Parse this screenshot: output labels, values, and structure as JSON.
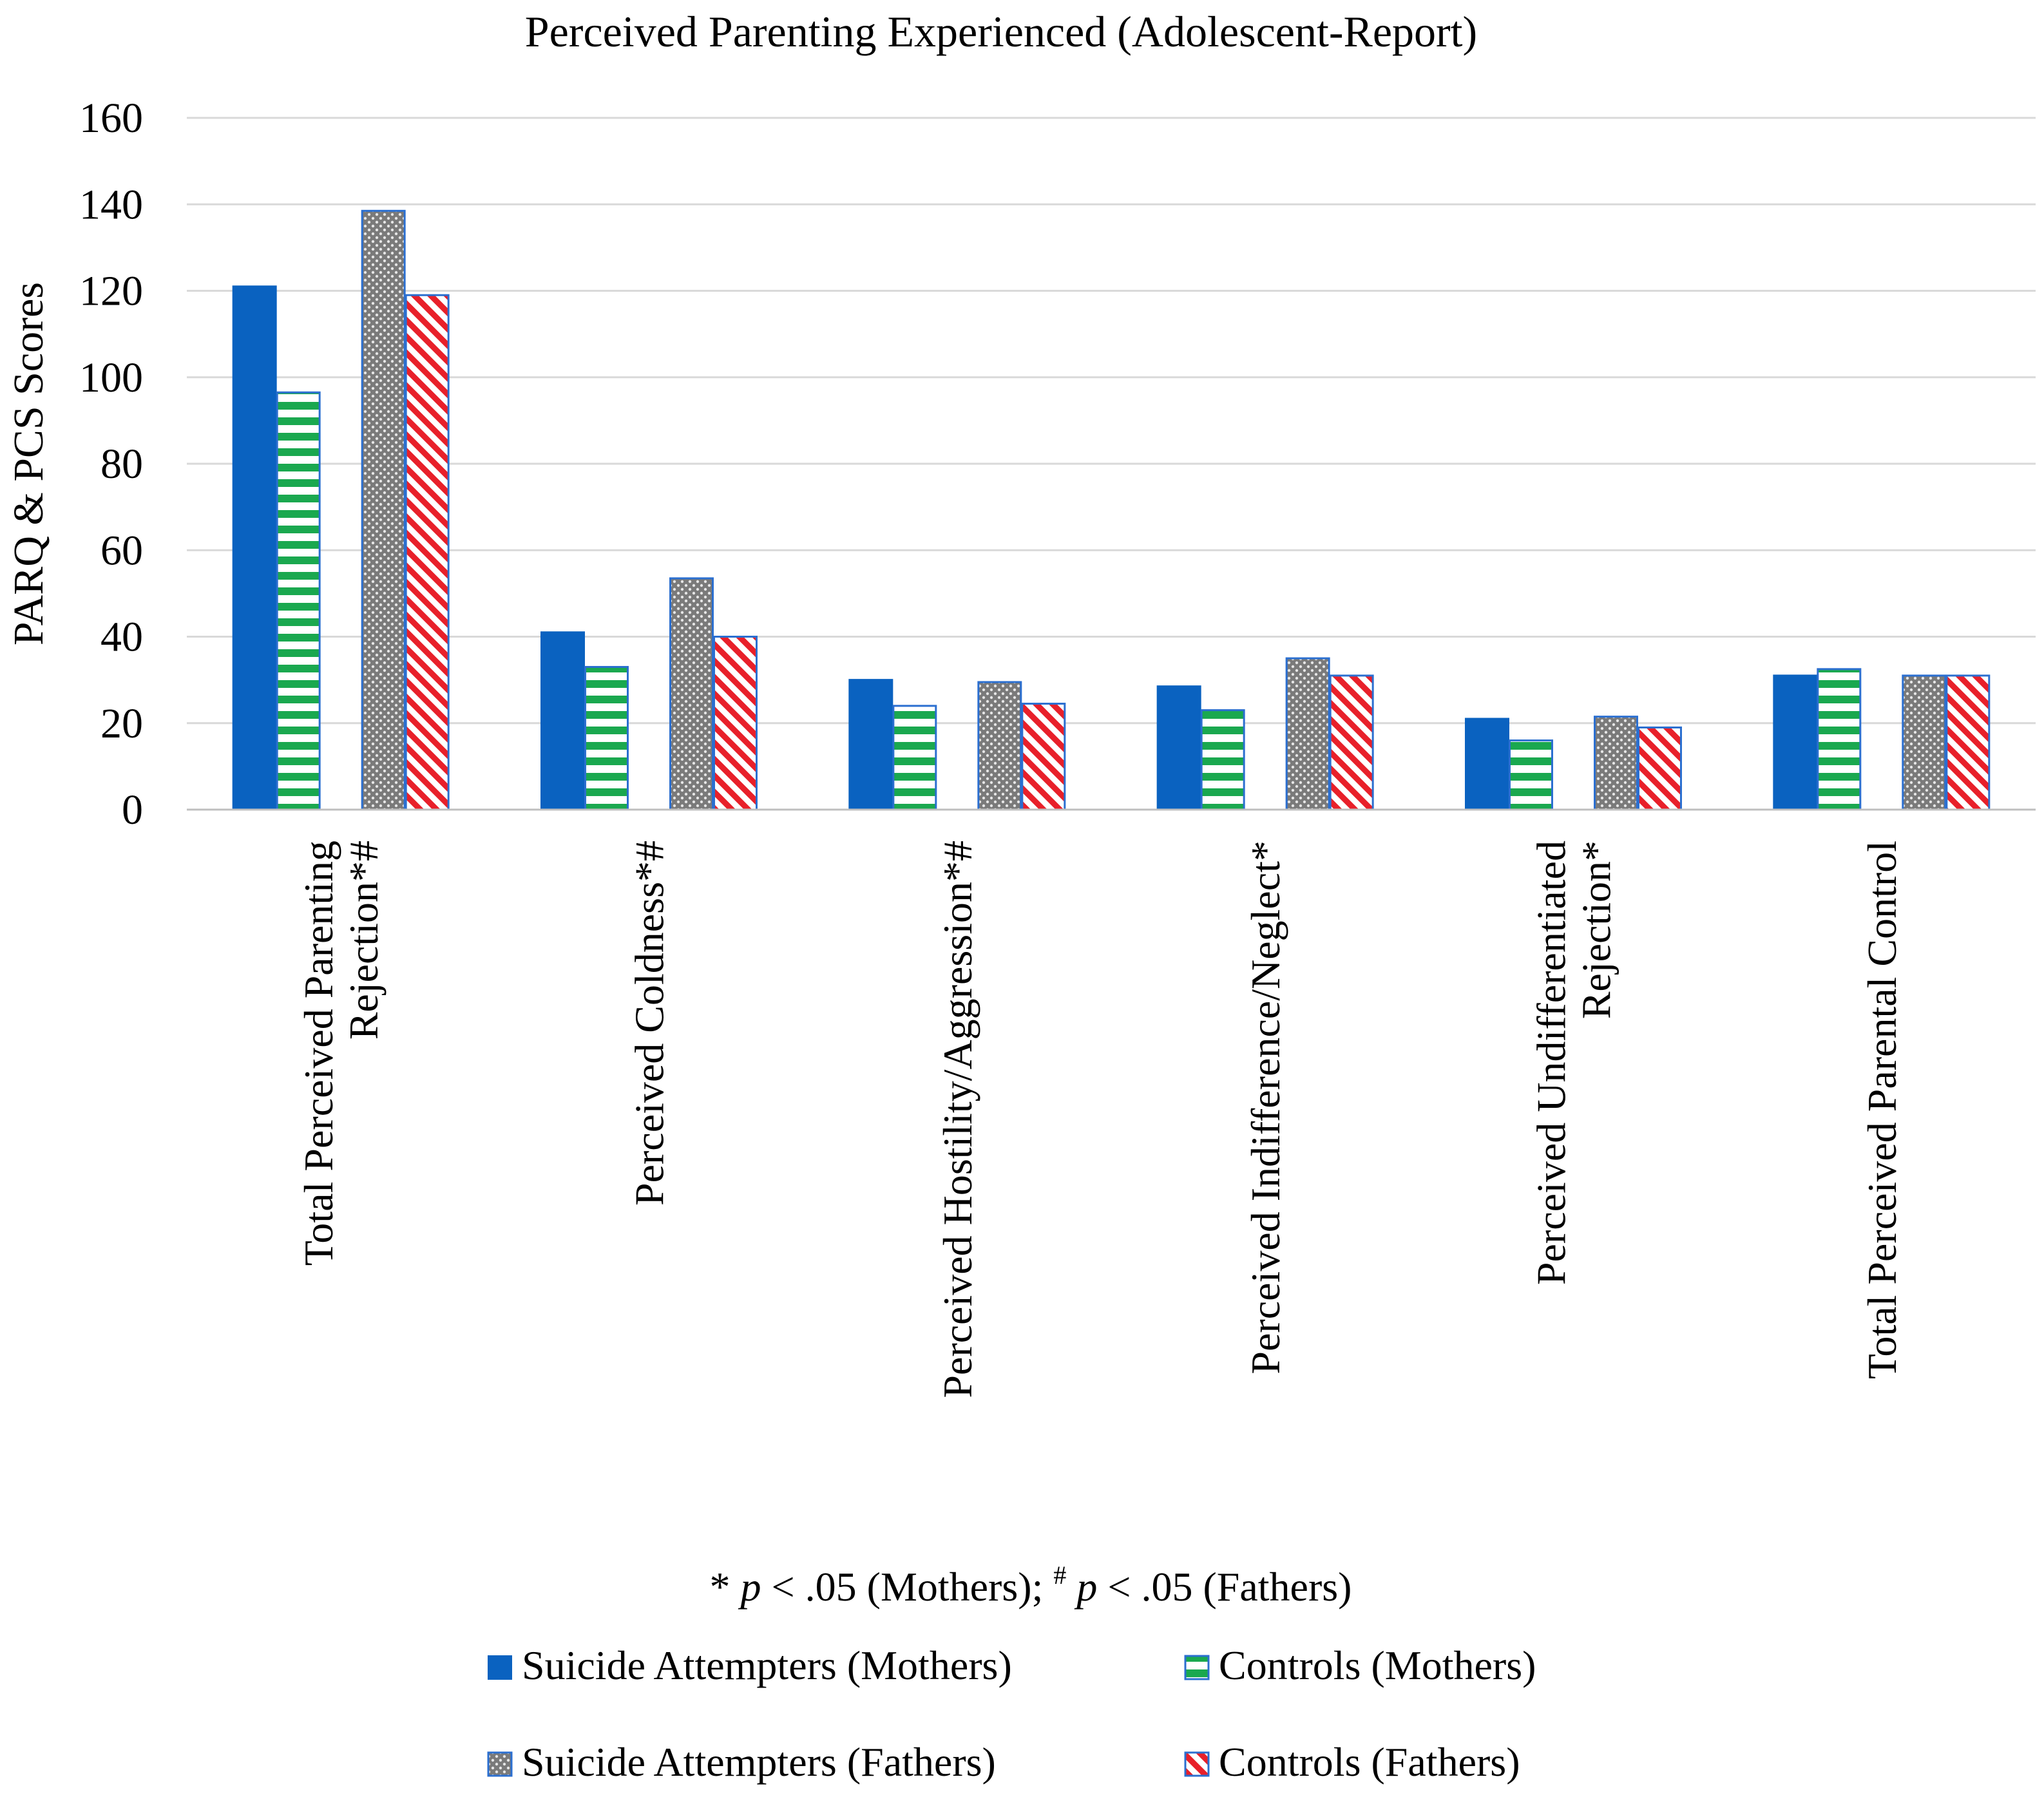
{
  "chart_data": {
    "type": "bar",
    "title": "Perceived Parenting Experienced (Adolescent-Report)",
    "xlabel": "",
    "ylabel": "PARQ & PCS Scores",
    "ylim": [
      0,
      160
    ],
    "yticks": [
      0,
      20,
      40,
      60,
      80,
      100,
      120,
      140,
      160
    ],
    "grid": true,
    "categories": [
      [
        "Total Perceived Parenting",
        "Rejection*#"
      ],
      [
        "Perceived Coldness*#"
      ],
      [
        "Perceived Hostility/Aggression*#"
      ],
      [
        "Perceived Indifference/Neglect*"
      ],
      [
        "Perceived Undifferentiated",
        "Rejection*"
      ],
      [
        "Total Perceived Parental Control"
      ]
    ],
    "series": [
      {
        "name": "Suicide Attempters (Mothers)",
        "pattern": "solid",
        "color": "#0a62c0",
        "values": [
          121,
          41,
          30,
          28.5,
          21,
          31
        ]
      },
      {
        "name": "Controls (Mothers)",
        "pattern": "horizontal-stripes",
        "color": "#1aa84f",
        "values": [
          96.5,
          33,
          24,
          23,
          16,
          32.5
        ]
      },
      {
        "name": "Suicide Attempters (Fathers)",
        "pattern": "dots",
        "color": "#8a8a8a",
        "values": [
          138.5,
          53.5,
          29.5,
          35,
          21.5,
          31
        ]
      },
      {
        "name": "Controls (Fathers)",
        "pattern": "diagonal-stripes",
        "color": "#e8202a",
        "values": [
          119,
          40,
          24.5,
          31,
          19,
          31
        ]
      }
    ],
    "footnote": {
      "star": "*",
      "p1": "p",
      "text1": " < .05 (Mothers); ",
      "hash": "#",
      "p2": "p",
      "text2": " < .05 (Fathers)"
    },
    "legend_position": "bottom"
  }
}
